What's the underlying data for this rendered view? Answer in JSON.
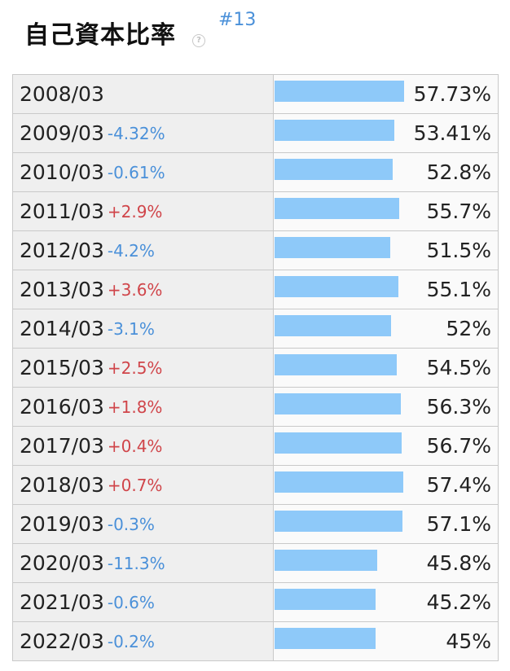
{
  "header": {
    "title": "自己資本比率",
    "help_icon": "question-circle-icon",
    "rank": "#13"
  },
  "colors": {
    "bar": "#8ec9f9",
    "negative_change": "#4a90d9",
    "positive_change": "#d0454a"
  },
  "chart_data": {
    "type": "bar",
    "orientation": "horizontal",
    "categories": [
      "2008/03",
      "2009/03",
      "2010/03",
      "2011/03",
      "2012/03",
      "2013/03",
      "2014/03",
      "2015/03",
      "2016/03",
      "2017/03",
      "2018/03",
      "2019/03",
      "2020/03",
      "2021/03",
      "2022/03"
    ],
    "values": [
      57.73,
      53.41,
      52.8,
      55.7,
      51.5,
      55.1,
      52,
      54.5,
      56.3,
      56.7,
      57.4,
      57.1,
      45.8,
      45.2,
      45
    ],
    "value_labels": [
      "57.73%",
      "53.41%",
      "52.8%",
      "55.7%",
      "51.5%",
      "55.1%",
      "52%",
      "54.5%",
      "56.3%",
      "56.7%",
      "57.4%",
      "57.1%",
      "45.8%",
      "45.2%",
      "45%"
    ],
    "changes": [
      "",
      "-4.32%",
      "-0.61%",
      "+2.9%",
      "-4.2%",
      "+3.6%",
      "-3.1%",
      "+2.5%",
      "+1.8%",
      "+0.4%",
      "+0.7%",
      "-0.3%",
      "-11.3%",
      "-0.6%",
      "-0.2%"
    ],
    "unit": "%"
  }
}
